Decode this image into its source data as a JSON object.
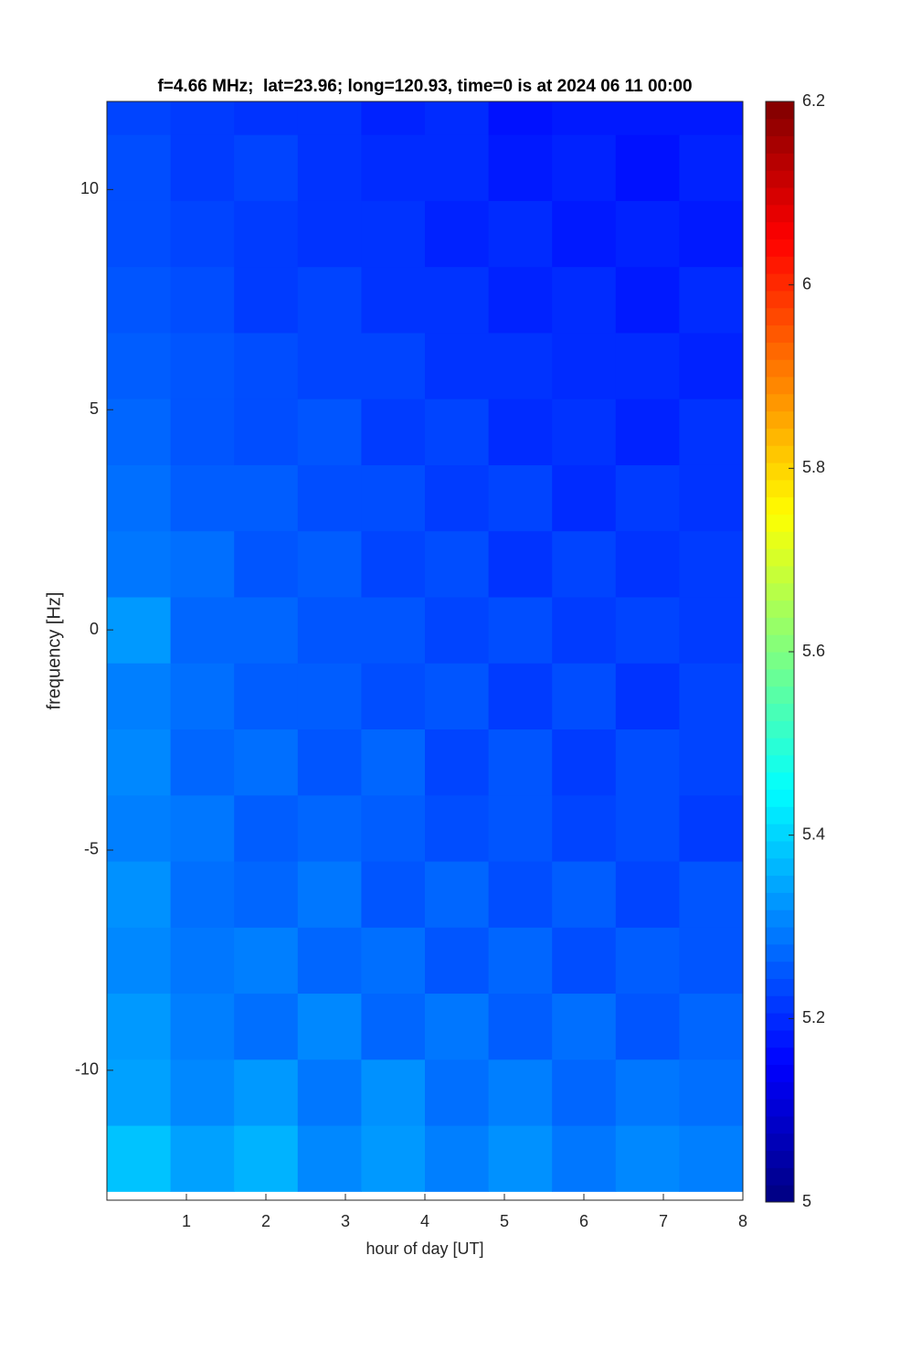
{
  "chart_data": {
    "type": "heatmap",
    "title": "f=4.66 MHz;  lat=23.96; long=120.93, time=0 is at 2024 06 11 00:00",
    "x_label": "hour of day [UT]",
    "y_label": "frequency [Hz]",
    "xlim": [
      0,
      8
    ],
    "xticks": [
      1,
      2,
      3,
      4,
      5,
      6,
      7,
      8
    ],
    "ylim": [
      -12.95,
      12
    ],
    "yticks": [
      -10,
      -5,
      0,
      5,
      10
    ],
    "colormap": "jet",
    "clim": [
      5,
      6.2
    ],
    "cticks": [
      5,
      5.2,
      5.4,
      5.6,
      5.8,
      6,
      6.2
    ],
    "x": [
      0.4,
      1.2,
      2,
      2.8,
      3.6,
      4.4,
      5.2,
      6,
      6.8,
      7.6
    ],
    "y": [
      -12,
      -10.5,
      -9,
      -7.5,
      -6,
      -4.5,
      -3,
      -1.5,
      0,
      1.5,
      3,
      4.5,
      6,
      7.5,
      9,
      10.5,
      12
    ],
    "z": [
      [
        5.38,
        5.34,
        5.36,
        5.31,
        5.33,
        5.3,
        5.32,
        5.29,
        5.31,
        5.3
      ],
      [
        5.34,
        5.31,
        5.33,
        5.29,
        5.32,
        5.28,
        5.3,
        5.27,
        5.29,
        5.28
      ],
      [
        5.33,
        5.3,
        5.28,
        5.31,
        5.27,
        5.29,
        5.26,
        5.28,
        5.25,
        5.27
      ],
      [
        5.31,
        5.29,
        5.3,
        5.27,
        5.28,
        5.25,
        5.27,
        5.24,
        5.26,
        5.25
      ],
      [
        5.32,
        5.28,
        5.27,
        5.29,
        5.25,
        5.27,
        5.24,
        5.26,
        5.23,
        5.25
      ],
      [
        5.3,
        5.29,
        5.26,
        5.27,
        5.26,
        5.24,
        5.25,
        5.23,
        5.24,
        5.22
      ],
      [
        5.31,
        5.27,
        5.28,
        5.25,
        5.27,
        5.23,
        5.25,
        5.22,
        5.24,
        5.23
      ],
      [
        5.3,
        5.28,
        5.26,
        5.26,
        5.24,
        5.25,
        5.22,
        5.24,
        5.21,
        5.23
      ],
      [
        5.33,
        5.27,
        5.27,
        5.25,
        5.25,
        5.23,
        5.24,
        5.22,
        5.23,
        5.22
      ],
      [
        5.29,
        5.28,
        5.25,
        5.26,
        5.23,
        5.24,
        5.21,
        5.23,
        5.21,
        5.22
      ],
      [
        5.28,
        5.26,
        5.26,
        5.24,
        5.24,
        5.22,
        5.23,
        5.2,
        5.22,
        5.21
      ],
      [
        5.27,
        5.25,
        5.24,
        5.25,
        5.22,
        5.23,
        5.2,
        5.21,
        5.19,
        5.21
      ],
      [
        5.26,
        5.25,
        5.24,
        5.23,
        5.23,
        5.21,
        5.21,
        5.2,
        5.2,
        5.19
      ],
      [
        5.25,
        5.24,
        5.22,
        5.23,
        5.21,
        5.21,
        5.19,
        5.2,
        5.18,
        5.2
      ],
      [
        5.24,
        5.23,
        5.22,
        5.21,
        5.21,
        5.19,
        5.2,
        5.18,
        5.19,
        5.18
      ],
      [
        5.24,
        5.22,
        5.23,
        5.21,
        5.2,
        5.2,
        5.18,
        5.19,
        5.17,
        5.19
      ],
      [
        5.23,
        5.22,
        5.21,
        5.21,
        5.19,
        5.2,
        5.17,
        5.18,
        5.18,
        5.18
      ]
    ]
  }
}
